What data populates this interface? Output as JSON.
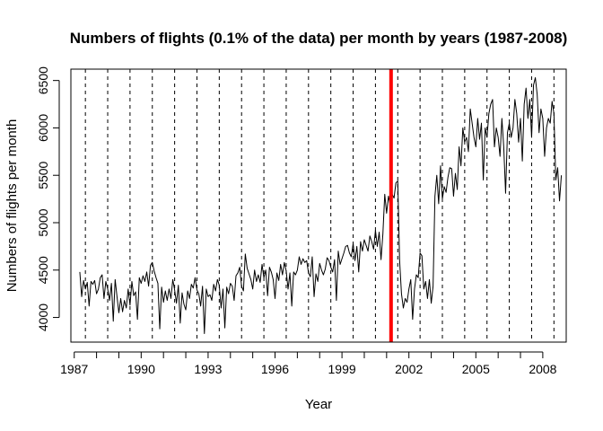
{
  "chart_data": {
    "type": "line",
    "title": "Numbers of flights (0.1% of the data) per month by years (1987-2008)",
    "xlabel": "Year",
    "ylabel": "Numbers of flights per month",
    "xlim": [
      1986.85,
      2009.05
    ],
    "ylim": [
      3740,
      6620
    ],
    "x_ticks": [
      1987,
      1990,
      1993,
      1996,
      1999,
      2002,
      2005,
      2008
    ],
    "y_ticks": [
      4000,
      4500,
      5000,
      5500,
      6000,
      6500
    ],
    "grid": false,
    "legend": "none",
    "colors": {
      "series": "#000000",
      "dashed": "#000000",
      "highlight": "#ff0000"
    },
    "dashed_vertical_lines_x": [
      1987.5,
      1988.5,
      1989.5,
      1990.5,
      1991.5,
      1992.5,
      1993.5,
      1994.5,
      1995.5,
      1996.5,
      1997.5,
      1998.5,
      1999.5,
      2000.5,
      2001.5,
      2002.5,
      2003.5,
      2004.5,
      2005.5,
      2006.5,
      2007.5,
      2008.5
    ],
    "highlight_vertical_line_x": 2001.2,
    "series": [
      {
        "start_year": 1987.25,
        "step_months": 1,
        "values": [
          4480,
          4220,
          4390,
          4300,
          4370,
          4120,
          4380,
          4350,
          4390,
          4250,
          4300,
          4420,
          4450,
          4200,
          4380,
          4300,
          4180,
          4360,
          3960,
          4400,
          4220,
          4050,
          4200,
          4060,
          4180,
          4100,
          4300,
          4130,
          4380,
          4230,
          4270,
          3980,
          4420,
          4360,
          4440,
          4380,
          4480,
          4330,
          4550,
          4580,
          4490,
          4420,
          4360,
          3880,
          4320,
          4160,
          4280,
          4180,
          4300,
          4200,
          4400,
          4290,
          4150,
          4340,
          3940,
          4260,
          4140,
          4080,
          4280,
          4200,
          4350,
          4310,
          4420,
          4290,
          4250,
          4120,
          4330,
          3830,
          4300,
          4220,
          4240,
          4180,
          4350,
          4280,
          4400,
          4340,
          4100,
          4300,
          3890,
          4320,
          4250,
          4360,
          4330,
          4180,
          4440,
          4470,
          4530,
          4330,
          4280,
          4670,
          4520,
          4460,
          4400,
          4300,
          4500,
          4380,
          4450,
          4370,
          4560,
          4420,
          4500,
          4230,
          4530,
          4480,
          4400,
          4200,
          4470,
          4390,
          4560,
          4450,
          4580,
          4490,
          4300,
          4470,
          4120,
          4480,
          4450,
          4500,
          4640,
          4560,
          4620,
          4580,
          4600,
          4470,
          4430,
          4640,
          4220,
          4460,
          4380,
          4570,
          4500,
          4450,
          4510,
          4630,
          4600,
          4530,
          4480,
          4610,
          4180,
          4700,
          4560,
          4620,
          4680,
          4750,
          4760,
          4680,
          4640,
          4780,
          4600,
          4750,
          4480,
          4800,
          4700,
          4820,
          4760,
          4700,
          4860,
          4800,
          4720,
          4920,
          4750,
          4900,
          4610,
          4880,
          5300,
          5100,
          5280,
          5180,
          5300,
          5260,
          5420,
          5440,
          4600,
          4250,
          4100,
          4200,
          4160,
          4300,
          4400,
          3980,
          4300,
          4450,
          4420,
          4680,
          4650,
          4300,
          4380,
          4200,
          4400,
          4150,
          4330,
          5280,
          5500,
          5200,
          5600,
          5250,
          5380,
          5320,
          5480,
          5580,
          5570,
          5280,
          5520,
          5350,
          5800,
          5600,
          6000,
          5850,
          5900,
          5750,
          6200,
          6050,
          5900,
          5800,
          6100,
          5880,
          6050,
          5450,
          6000,
          5900,
          6150,
          6250,
          6300,
          5800,
          6000,
          5900,
          5700,
          6100,
          5800,
          5310,
          5950,
          6050,
          5900,
          6000,
          6300,
          6150,
          5850,
          6100,
          5650,
          6250,
          6420,
          6100,
          6300,
          5900,
          6450,
          6530,
          6350,
          5950,
          6200,
          6100,
          5700,
          6000,
          6100,
          6050,
          6280,
          6150,
          5450,
          5580,
          5230,
          5500
        ]
      }
    ]
  }
}
